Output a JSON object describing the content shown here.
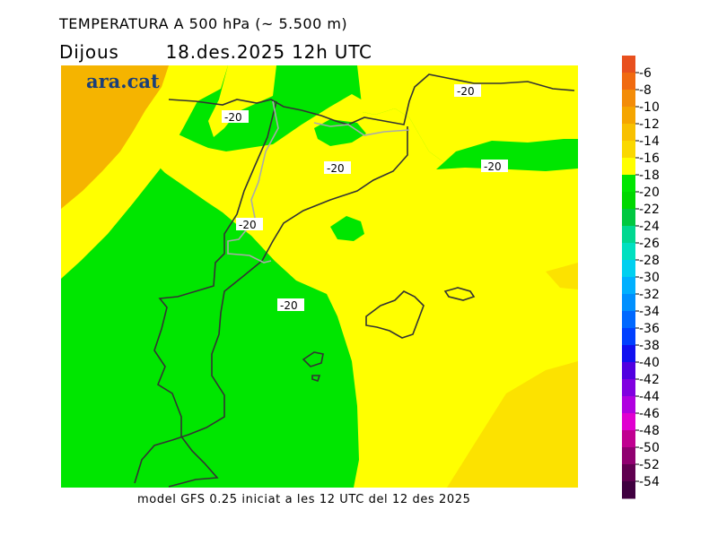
{
  "header": {
    "title": "TEMPERATURA A 500 hPa (~ 5.500 m)",
    "day": "Dijous",
    "date": "18.des.2025 12h UTC"
  },
  "logo": {
    "text": "ara.cat",
    "color": "#1a3f7a"
  },
  "map": {
    "contour_labels": [
      "-20",
      "-20",
      "-20",
      "-20",
      "-20",
      "-20"
    ],
    "colors": {
      "orange": "#f5b400",
      "yellow_dark": "#fce200",
      "yellow": "#ffff00",
      "green": "#00e600",
      "coast": "#333333",
      "border": "#aaaaaa"
    }
  },
  "legend": {
    "labels": [
      "-6",
      "-8",
      "-10",
      "-12",
      "-14",
      "-16",
      "-18",
      "-20",
      "-22",
      "-24",
      "-26",
      "-28",
      "-30",
      "-32",
      "-34",
      "-36",
      "-38",
      "-40",
      "-42",
      "-44",
      "-46",
      "-48",
      "-50",
      "-52",
      "-54"
    ],
    "colors": [
      "#e8501e",
      "#f06a10",
      "#f38c08",
      "#f5a500",
      "#f8c000",
      "#fad800",
      "#ffff00",
      "#00e600",
      "#00d800",
      "#00c840",
      "#00d890",
      "#00e0c0",
      "#00d0f0",
      "#00b0ff",
      "#0090ff",
      "#0068ff",
      "#0040ff",
      "#1010f0",
      "#5000e0",
      "#8000e0",
      "#b000e0",
      "#e000d0",
      "#c00090",
      "#900070",
      "#600050",
      "#400040"
    ]
  },
  "footer": {
    "text": "model GFS 0.25 iniciat a les 12 UTC del 12 des 2025"
  }
}
